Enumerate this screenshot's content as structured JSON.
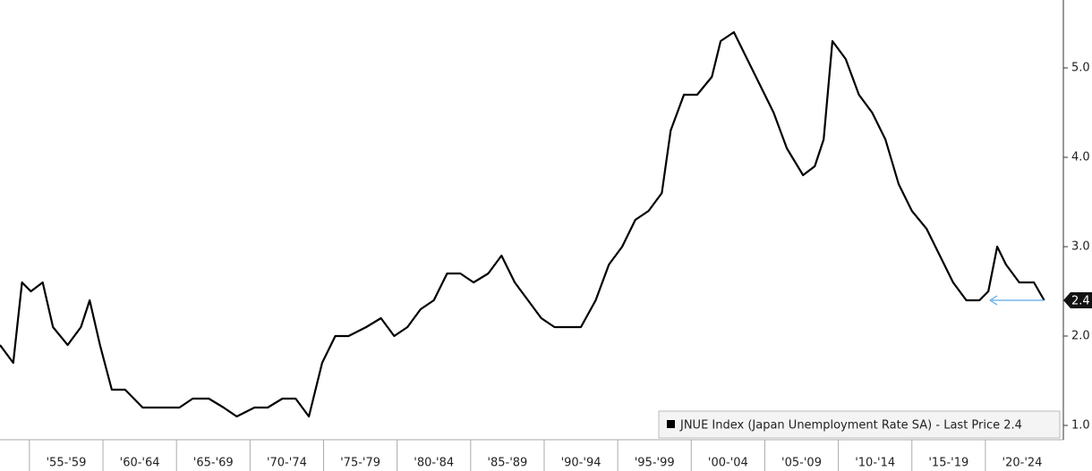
{
  "chart_data": {
    "type": "line",
    "x": [
      1953.0,
      1953.9,
      1954.5,
      1955.1,
      1955.9,
      1956.6,
      1957.6,
      1958.5,
      1959.1,
      1959.8,
      1960.6,
      1961.5,
      1962.7,
      1964.0,
      1965.2,
      1966.1,
      1967.2,
      1968.2,
      1969.1,
      1970.3,
      1971.2,
      1972.2,
      1973.1,
      1974.0,
      1974.9,
      1975.8,
      1976.7,
      1977.9,
      1978.9,
      1979.8,
      1980.7,
      1981.6,
      1982.5,
      1983.4,
      1984.3,
      1985.2,
      1986.2,
      1987.1,
      1988.0,
      1988.9,
      1989.8,
      1990.7,
      1991.6,
      1992.5,
      1993.5,
      1994.4,
      1995.3,
      1996.2,
      1997.1,
      1998.0,
      1998.6,
      1999.5,
      2000.4,
      2001.4,
      2002.0,
      2002.9,
      2003.8,
      2004.7,
      2005.6,
      2006.5,
      2007.6,
      2008.4,
      2009.0,
      2009.6,
      2010.5,
      2011.4,
      2012.3,
      2013.2,
      2014.1,
      2015.0,
      2016.0,
      2016.9,
      2017.8,
      2018.7,
      2019.6,
      2020.2,
      2020.8,
      2021.4,
      2022.3,
      2023.3,
      2024.0
    ],
    "series": [
      {
        "name": "JNUE Index (Japan Unemployment Rate SA) - Last Price 2.4",
        "color": "#000000",
        "values": [
          1.9,
          1.7,
          2.6,
          2.5,
          2.6,
          2.1,
          1.9,
          2.1,
          2.4,
          1.9,
          1.4,
          1.4,
          1.2,
          1.2,
          1.2,
          1.3,
          1.3,
          1.2,
          1.1,
          1.2,
          1.2,
          1.3,
          1.3,
          1.1,
          1.7,
          2.0,
          2.0,
          2.1,
          2.2,
          2.0,
          2.1,
          2.3,
          2.4,
          2.7,
          2.7,
          2.6,
          2.7,
          2.9,
          2.6,
          2.4,
          2.2,
          2.1,
          2.1,
          2.1,
          2.4,
          2.8,
          3.0,
          3.3,
          3.4,
          3.6,
          4.3,
          4.7,
          4.7,
          4.9,
          5.3,
          5.4,
          5.1,
          4.8,
          4.5,
          4.1,
          3.8,
          3.9,
          4.2,
          5.3,
          5.1,
          4.7,
          4.5,
          4.2,
          3.7,
          3.4,
          3.2,
          2.9,
          2.6,
          2.4,
          2.4,
          2.5,
          3.0,
          2.8,
          2.6,
          2.6,
          2.4
        ]
      }
    ],
    "last_price": 2.4,
    "xlim": [
      1953.0,
      2025.3
    ],
    "periods": [
      {
        "label": "'55-'59",
        "start": 1955
      },
      {
        "label": "'60-'64",
        "start": 1960
      },
      {
        "label": "'65-'69",
        "start": 1965
      },
      {
        "label": "'70-'74",
        "start": 1970
      },
      {
        "label": "'75-'79",
        "start": 1975
      },
      {
        "label": "'80-'84",
        "start": 1980
      },
      {
        "label": "'85-'89",
        "start": 1985
      },
      {
        "label": "'90-'94",
        "start": 1990
      },
      {
        "label": "'95-'99",
        "start": 1995
      },
      {
        "label": "'00-'04",
        "start": 2000
      },
      {
        "label": "'05-'09",
        "start": 2005
      },
      {
        "label": "'10-'14",
        "start": 2010
      },
      {
        "label": "'15-'19",
        "start": 2015
      },
      {
        "label": "'20-'24",
        "start": 2020
      }
    ],
    "period_years": 5,
    "ylim": [
      0.84,
      5.76
    ],
    "yticks": [
      {
        "value": 1,
        "label": "1.0"
      },
      {
        "value": 2,
        "label": "2.0"
      },
      {
        "value": 3,
        "label": "3.0"
      },
      {
        "value": 4,
        "label": "4.0"
      },
      {
        "value": 5,
        "label": "5.0"
      }
    ],
    "arrow_color": "#5aa7e6"
  }
}
